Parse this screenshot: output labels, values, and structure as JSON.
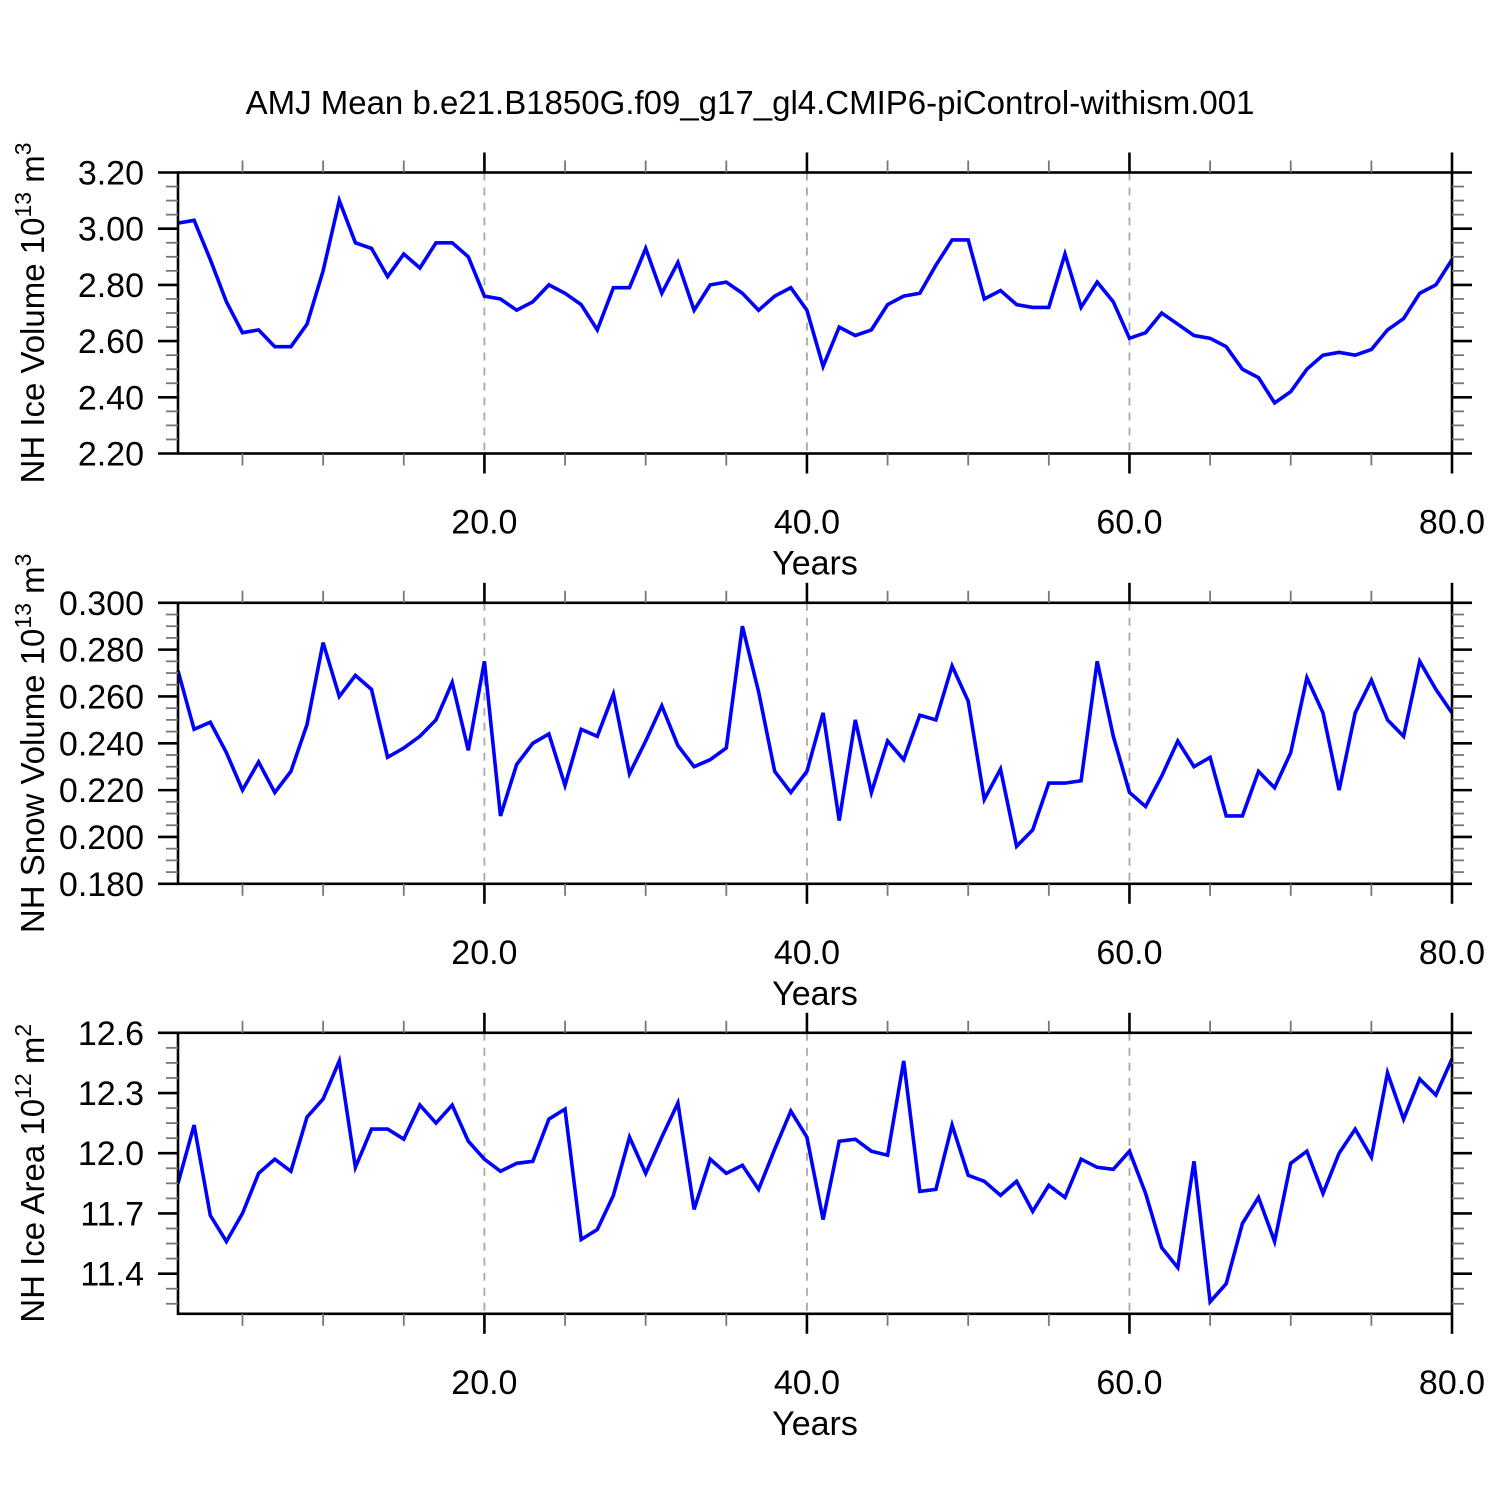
{
  "title": "AMJ Mean b.e21.B1850G.f09_g17_gl4.CMIP6-piControl-withism.001",
  "accent_color": "#0000ff",
  "chart_data": [
    {
      "id": "nh-ice-volume",
      "type": "line",
      "xlabel": "Years",
      "ylabel_parts": [
        {
          "t": "NH Ice Volume 10"
        },
        {
          "t": "13",
          "sup": true
        },
        {
          "t": " m"
        },
        {
          "t": "3",
          "sup": true
        }
      ],
      "ylim": [
        2.2,
        3.2
      ],
      "yticks": [
        2.2,
        2.4,
        2.6,
        2.8,
        3.0,
        3.2
      ],
      "yticklabels": [
        "2.20",
        "2.40",
        "2.60",
        "2.80",
        "3.00",
        "3.20"
      ],
      "y_minor_step": 0.05,
      "xlim": [
        1,
        80
      ],
      "xticks": [
        20,
        40,
        60,
        80
      ],
      "xticklabels": [
        "20.0",
        "40.0",
        "60.0",
        "80.0"
      ],
      "x_minor_step": 5,
      "gridlines_x": [
        20,
        40,
        60
      ],
      "grid": true,
      "legend": "none",
      "line_color": "#0000ff",
      "x_start": 1,
      "x_step": 1,
      "values": [
        3.02,
        3.03,
        2.89,
        2.74,
        2.63,
        2.64,
        2.58,
        2.58,
        2.66,
        2.85,
        3.1,
        2.95,
        2.93,
        2.83,
        2.91,
        2.86,
        2.95,
        2.95,
        2.9,
        2.76,
        2.75,
        2.71,
        2.74,
        2.8,
        2.77,
        2.73,
        2.64,
        2.79,
        2.79,
        2.93,
        2.77,
        2.88,
        2.71,
        2.8,
        2.81,
        2.77,
        2.71,
        2.76,
        2.79,
        2.71,
        2.51,
        2.65,
        2.62,
        2.64,
        2.73,
        2.76,
        2.77,
        2.87,
        2.96,
        2.96,
        2.75,
        2.78,
        2.73,
        2.72,
        2.72,
        2.91,
        2.72,
        2.81,
        2.74,
        2.61,
        2.63,
        2.7,
        2.66,
        2.62,
        2.61,
        2.58,
        2.5,
        2.47,
        2.38,
        2.42,
        2.5,
        2.55,
        2.56,
        2.55,
        2.57,
        2.64,
        2.68,
        2.77,
        2.8,
        2.89
      ]
    },
    {
      "id": "nh-snow-volume",
      "type": "line",
      "xlabel": "Years",
      "ylabel_parts": [
        {
          "t": "NH Snow Volume 10"
        },
        {
          "t": "13",
          "sup": true
        },
        {
          "t": " m"
        },
        {
          "t": "3",
          "sup": true
        }
      ],
      "ylim": [
        0.18,
        0.3
      ],
      "yticks": [
        0.18,
        0.2,
        0.22,
        0.24,
        0.26,
        0.28,
        0.3
      ],
      "yticklabels": [
        "0.180",
        "0.200",
        "0.220",
        "0.240",
        "0.260",
        "0.280",
        "0.300"
      ],
      "y_minor_step": 0.005,
      "xlim": [
        1,
        80
      ],
      "xticks": [
        20,
        40,
        60,
        80
      ],
      "xticklabels": [
        "20.0",
        "40.0",
        "60.0",
        "80.0"
      ],
      "x_minor_step": 5,
      "gridlines_x": [
        20,
        40,
        60
      ],
      "grid": true,
      "legend": "none",
      "line_color": "#0000ff",
      "x_start": 1,
      "x_step": 1,
      "values": [
        0.271,
        0.246,
        0.249,
        0.236,
        0.22,
        0.232,
        0.219,
        0.228,
        0.248,
        0.283,
        0.26,
        0.269,
        0.263,
        0.234,
        0.238,
        0.243,
        0.25,
        0.266,
        0.237,
        0.275,
        0.209,
        0.231,
        0.24,
        0.244,
        0.222,
        0.246,
        0.243,
        0.261,
        0.227,
        0.241,
        0.256,
        0.239,
        0.23,
        0.233,
        0.238,
        0.29,
        0.262,
        0.228,
        0.219,
        0.228,
        0.253,
        0.207,
        0.25,
        0.219,
        0.241,
        0.233,
        0.252,
        0.25,
        0.273,
        0.258,
        0.216,
        0.229,
        0.196,
        0.203,
        0.223,
        0.223,
        0.224,
        0.275,
        0.243,
        0.219,
        0.213,
        0.226,
        0.241,
        0.23,
        0.234,
        0.209,
        0.209,
        0.228,
        0.221,
        0.236,
        0.268,
        0.253,
        0.22,
        0.253,
        0.267,
        0.25,
        0.243,
        0.275,
        0.263,
        0.253
      ]
    },
    {
      "id": "nh-ice-area",
      "type": "line",
      "xlabel": "Years",
      "ylabel_parts": [
        {
          "t": "NH Ice Area 10"
        },
        {
          "t": "12",
          "sup": true
        },
        {
          "t": " m"
        },
        {
          "t": "2",
          "sup": true
        }
      ],
      "ylim": [
        11.2,
        12.6
      ],
      "yticks": [
        11.4,
        11.7,
        12.0,
        12.3,
        12.6
      ],
      "yticklabels": [
        "11.4",
        "11.7",
        "12.0",
        "12.3",
        "12.6"
      ],
      "y_minor_step": 0.075,
      "xlim": [
        1,
        80
      ],
      "xticks": [
        20,
        40,
        60,
        80
      ],
      "xticklabels": [
        "20.0",
        "40.0",
        "60.0",
        "80.0"
      ],
      "x_minor_step": 5,
      "gridlines_x": [
        20,
        40,
        60
      ],
      "grid": true,
      "legend": "none",
      "line_color": "#0000ff",
      "x_start": 1,
      "x_step": 1,
      "values": [
        11.85,
        12.14,
        11.69,
        11.56,
        11.7,
        11.9,
        11.97,
        11.91,
        12.18,
        12.27,
        12.46,
        11.93,
        12.12,
        12.12,
        12.07,
        12.24,
        12.15,
        12.24,
        12.06,
        11.97,
        11.91,
        11.95,
        11.96,
        12.17,
        12.22,
        11.57,
        11.62,
        11.79,
        12.08,
        11.9,
        12.08,
        12.25,
        11.72,
        11.97,
        11.9,
        11.94,
        11.82,
        12.02,
        12.21,
        12.08,
        11.67,
        12.06,
        12.07,
        12.01,
        11.99,
        12.46,
        11.81,
        11.82,
        12.14,
        11.89,
        11.86,
        11.79,
        11.86,
        11.71,
        11.84,
        11.78,
        11.97,
        11.93,
        11.92,
        12.01,
        11.8,
        11.53,
        11.43,
        11.96,
        11.26,
        11.35,
        11.65,
        11.78,
        11.56,
        11.95,
        12.01,
        11.8,
        12.0,
        12.12,
        11.98,
        12.4,
        12.17,
        12.37,
        12.29,
        12.47
      ]
    }
  ]
}
